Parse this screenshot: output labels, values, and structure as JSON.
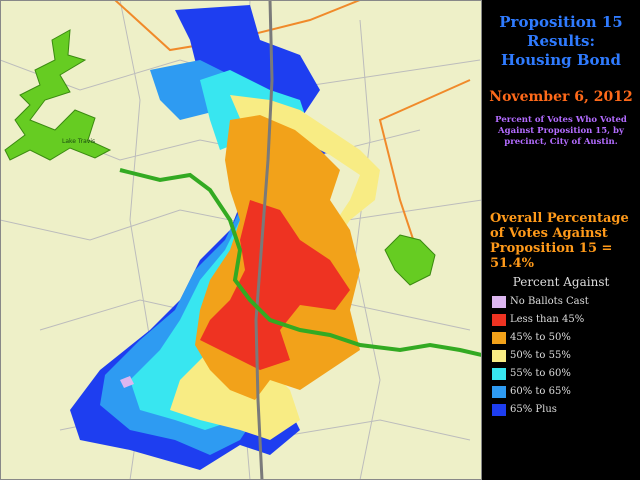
{
  "title": {
    "line1": "Proposition 15",
    "line2": "Results:",
    "line3": "Housing Bond"
  },
  "date": "November 6, 2012",
  "description": "Percent of Votes Who Voted Against Proposition 15, by precinct, City of Austin.",
  "overall": {
    "line1": "Overall Percentage",
    "line2": "of Votes Against",
    "line3": "Proposition 15 = 51.4%"
  },
  "lake_label": "Lake Travis",
  "legend": {
    "title": "Percent Against",
    "items": [
      {
        "label": "No Ballots Cast",
        "color": "#dcb6f0"
      },
      {
        "label": "Less than 45%",
        "color": "#ee3322"
      },
      {
        "label": "45% to 50%",
        "color": "#f2a21a"
      },
      {
        "label": "50% to 55%",
        "color": "#f8ec84"
      },
      {
        "label": "55% to 60%",
        "color": "#38e6f0"
      },
      {
        "label": "60% to 65%",
        "color": "#2e9bf2"
      },
      {
        "label": "65% Plus",
        "color": "#1e3ef0"
      }
    ]
  }
}
